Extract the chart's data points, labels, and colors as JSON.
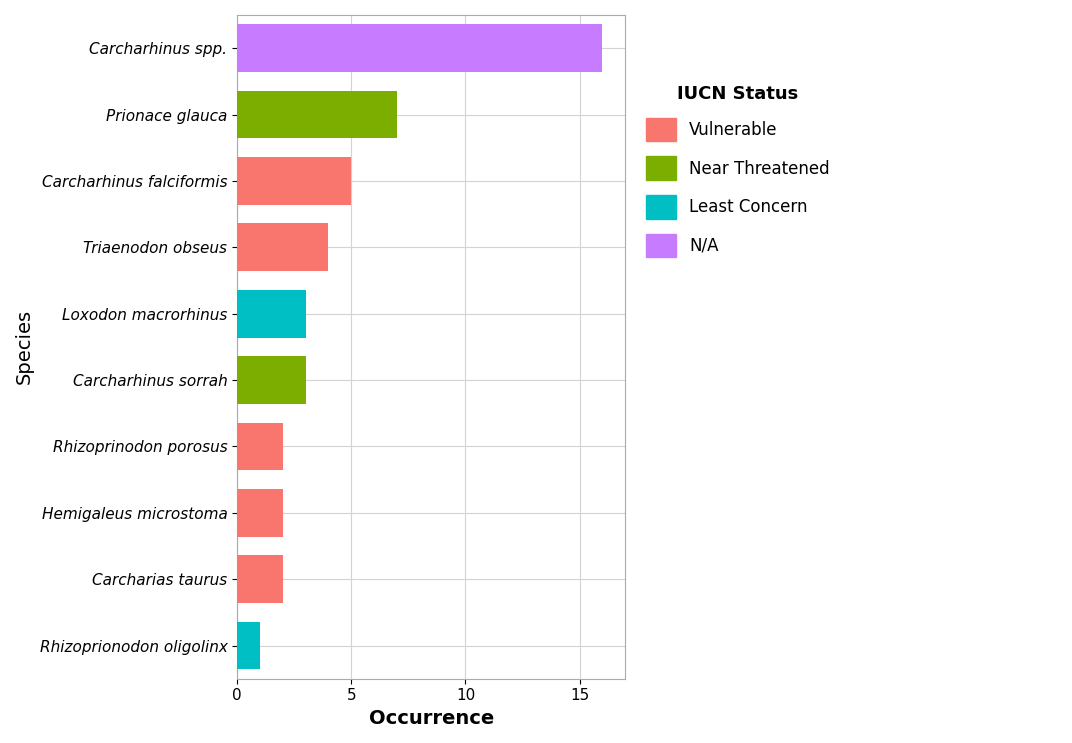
{
  "species": [
    "Rhizoprionodon oligolinx",
    "Carcharias taurus",
    "Hemigaleus microstoma",
    "Rhizoprinodon porosus",
    "Carcharhinus sorrah",
    "Loxodon macrorhinus",
    "Triaenodon obseus",
    "Carcharhinus falciformis",
    "Prionace glauca",
    "Carcharhinus spp."
  ],
  "values": [
    1,
    2,
    2,
    2,
    3,
    3,
    4,
    5,
    7,
    16
  ],
  "colors": [
    "#00BFC4",
    "#F8766D",
    "#F8766D",
    "#F8766D",
    "#7CAE00",
    "#00BFC4",
    "#F8766D",
    "#F8766D",
    "#7CAE00",
    "#C77CFF"
  ],
  "legend_labels": [
    "Vulnerable",
    "Near Threatened",
    "Least Concern",
    "N/A"
  ],
  "legend_colors": [
    "#F8766D",
    "#7CAE00",
    "#00BFC4",
    "#C77CFF"
  ],
  "xlabel": "Occurrence",
  "ylabel": "Species",
  "legend_title": "IUCN Status",
  "xlim": [
    0,
    17
  ],
  "xticks": [
    0,
    5,
    10,
    15
  ],
  "plot_bg_color": "#FFFFFF",
  "fig_bg_color": "#FFFFFF",
  "grid_color": "#D3D3D3",
  "bar_height": 0.72,
  "axis_label_fontsize": 14,
  "tick_fontsize": 11,
  "legend_fontsize": 12,
  "legend_title_fontsize": 13
}
